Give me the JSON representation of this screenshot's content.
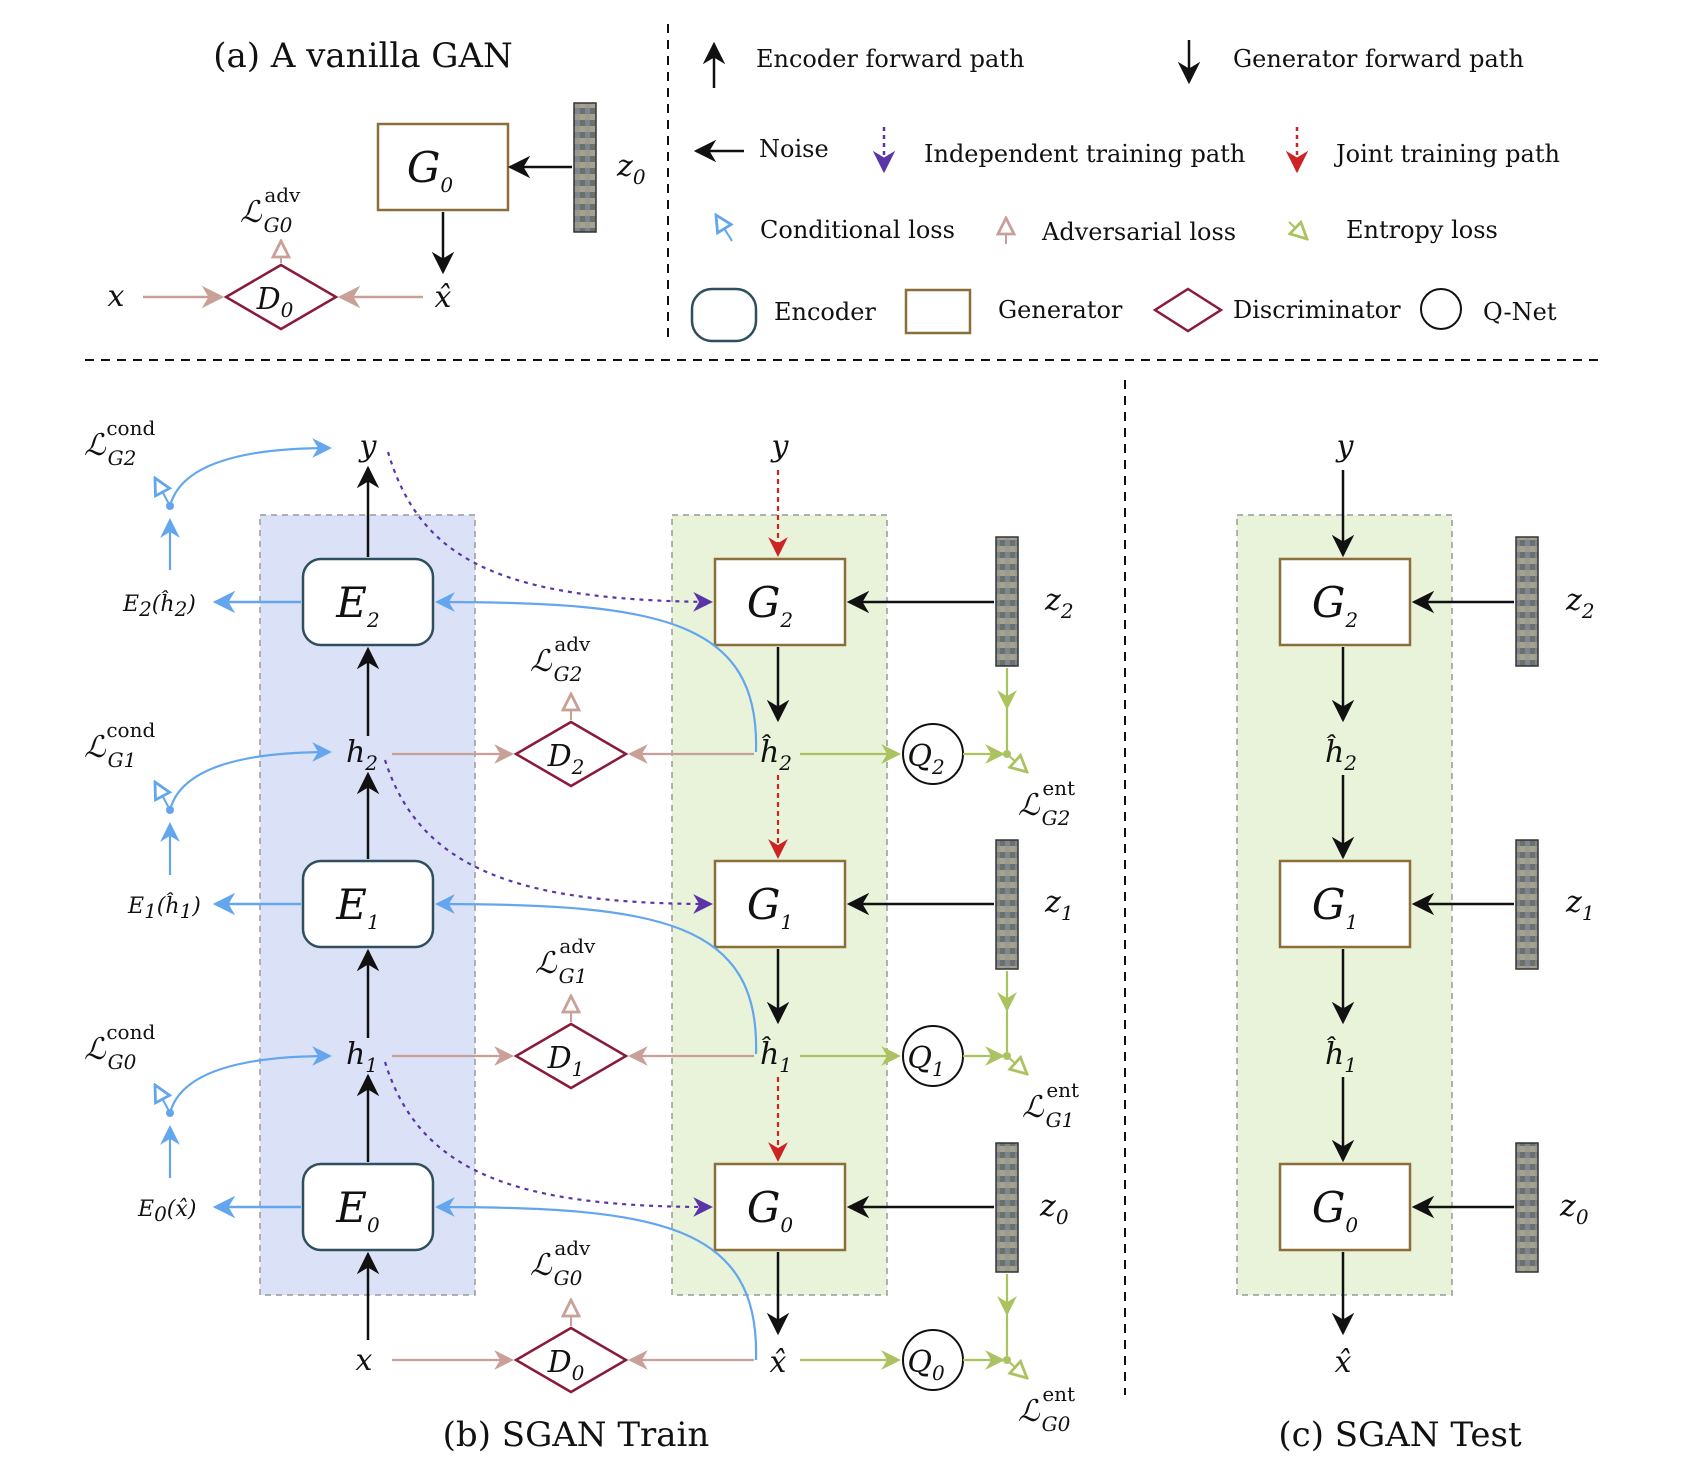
{
  "captions": {
    "a": "(a) A vanilla GAN",
    "b": "(b) SGAN Train",
    "c": "(c) SGAN Test"
  },
  "legend": {
    "encoder_forward": "Encoder forward path",
    "generator_forward": "Generator forward path",
    "noise": "Noise",
    "independent": "Independent training path",
    "joint": "Joint training path",
    "conditional": "Conditional loss",
    "adversarial": "Adversarial loss",
    "entropy": "Entropy loss",
    "encoder": "Encoder",
    "generator": "Generator",
    "discriminator": "Discriminator",
    "qnet": "Q-Net"
  },
  "symbols": {
    "G": "G",
    "E": "E",
    "D": "D",
    "Q": "Q",
    "L": "ℒ",
    "x": "x",
    "xhat": "x̂",
    "y": "y",
    "h": "h",
    "hhat": "ĥ",
    "z": "z",
    "adv": "adv",
    "cond": "cond",
    "ent": "ent",
    "s0": "0",
    "s1": "1",
    "s2": "2"
  },
  "colors": {
    "black": "#111111",
    "adversarial": "#c8a097",
    "conditional": "#63a6ee",
    "entropy": "#aac35f",
    "independent": "#5b35a8",
    "joint": "#cc2424",
    "encoder_fill": "#dbe2f8",
    "generator_fill": "#e9f3da",
    "generator_border": "#8b6f3a",
    "encoder_border": "#2f4f5f",
    "discriminator_border": "#8b1a3a"
  }
}
